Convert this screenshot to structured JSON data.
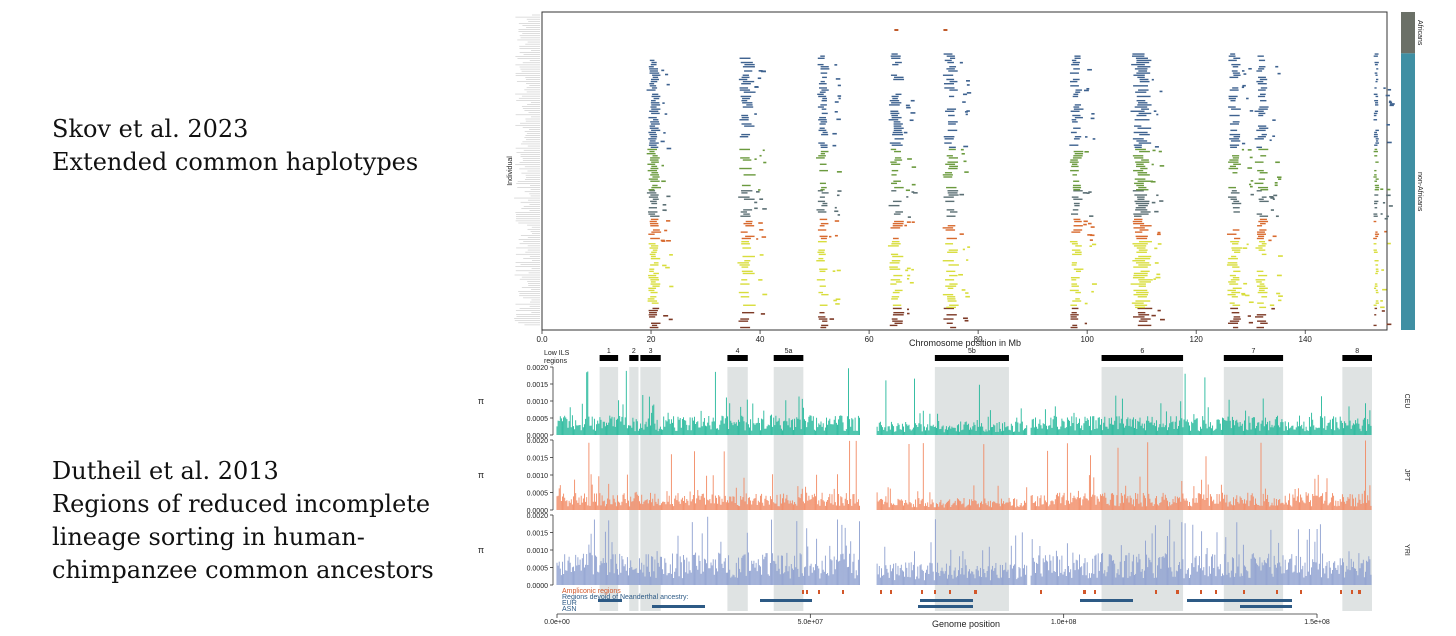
{
  "captions": {
    "top": [
      "Skov et al. 2023",
      "Extended common haplotypes"
    ],
    "bottom": [
      "Dutheil et al. 2013",
      "Regions of reduced incomplete",
      "lineage sorting in human-",
      "chimpanzee common ancestors"
    ]
  },
  "chart_data": [
    {
      "type": "scatter",
      "xlabel": "Chromosome position in Mb",
      "ylabel": "Individual",
      "xlim": [
        0,
        155
      ],
      "xticks": [
        "0.0",
        "20",
        "40",
        "60",
        "80",
        "100",
        "120",
        "140"
      ],
      "xtick_values": [
        0,
        20,
        40,
        60,
        80,
        100,
        120,
        140
      ],
      "population_bar": [
        {
          "name": "Africans",
          "color": "#6b7067",
          "fraction": 0.13
        },
        {
          "name": "non-Africans",
          "color": "#3f8fa3",
          "fraction": 0.87
        }
      ],
      "haplotype_columns_mb": [
        20.5,
        37.5,
        51.5,
        65,
        75,
        98,
        110,
        127,
        132,
        153
      ],
      "group_colors": [
        "#7d3a26",
        "#d8dd3c",
        "#d86a2e",
        "#5b6f74",
        "#6b9a3e",
        "#3e628f"
      ],
      "outlier_points_mb": [
        65,
        74
      ]
    },
    {
      "type": "bar",
      "xlabel": "Genome position",
      "xlim": [
        0,
        155000000
      ],
      "xticks": [
        "0.0e+00",
        "5.0e+07",
        "1.0e+08",
        "1.5e+08"
      ],
      "xtick_values": [
        0,
        50000000,
        100000000,
        150000000
      ],
      "ylabel": "π",
      "ylim": [
        0,
        0.002
      ],
      "yticks": [
        "0.0000",
        "0.0005",
        "0.0010",
        "0.0015",
        "0.0020"
      ],
      "ytick_values": [
        0,
        0.0005,
        0.001,
        0.0015,
        0.002
      ],
      "series": [
        {
          "name": "CEU",
          "color": "#23b89a",
          "baseline": 0.00038
        },
        {
          "name": "JPT",
          "color": "#f28a64",
          "baseline": 0.00033
        },
        {
          "name": "YRI",
          "color": "#8ea0d0",
          "baseline": 0.00062
        }
      ],
      "gaps_mb": [
        [
          60.5,
          61.2
        ],
        [
          88,
          93
        ],
        [
          97.5,
          99
        ]
      ],
      "low_ils": {
        "label_lines": [
          "Low ILS",
          "regions"
        ],
        "regions": [
          {
            "label": "1",
            "start": 11.5,
            "end": 16.5
          },
          {
            "label": "2",
            "start": 19.5,
            "end": 22
          },
          {
            "label": "3",
            "start": 22.5,
            "end": 28
          },
          {
            "label": "4",
            "start": 46,
            "end": 51.5
          },
          {
            "label": "5a",
            "start": 58.5,
            "end": 66.5
          },
          {
            "label": "5b",
            "start": 102,
            "end": 122
          },
          {
            "label": "6",
            "start": 147,
            "end": 169
          },
          {
            "label": "7",
            "start": 180,
            "end": 196
          },
          {
            "label": "8",
            "start": 212,
            "end": 220
          }
        ]
      },
      "annotations": {
        "ampliconic_label": "Ampliconic regions",
        "devoid_label": "Regions devoid of Neanderthal ancestry:",
        "eur_label": "EUR",
        "asn_label": "ASN"
      }
    }
  ]
}
